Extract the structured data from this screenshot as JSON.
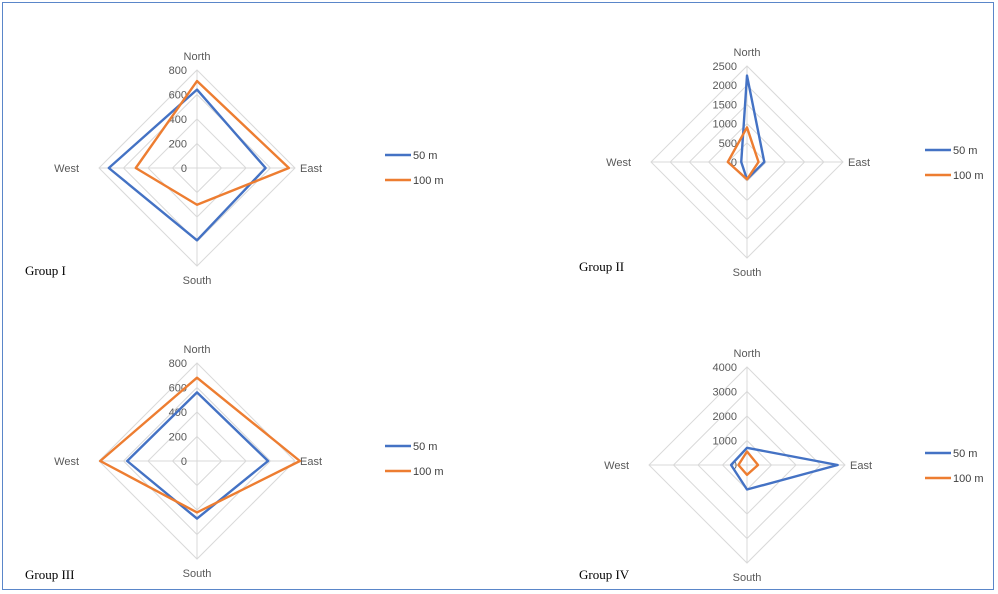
{
  "colors": {
    "series_50": "#4472c4",
    "series_100": "#ed7d31",
    "grid": "#d9d9d9",
    "frame": "#5a86c9"
  },
  "chart_data": [
    {
      "type": "radar",
      "group_label": "Group I",
      "categories": [
        "North",
        "East",
        "South",
        "West"
      ],
      "ticks": [
        "0",
        "200",
        "400",
        "600",
        "800"
      ],
      "rmax": 800,
      "legend_position": "right",
      "series": [
        {
          "name": "50 m",
          "values": [
            640,
            560,
            590,
            720
          ]
        },
        {
          "name": "100 m",
          "values": [
            710,
            750,
            300,
            500
          ]
        }
      ]
    },
    {
      "type": "radar",
      "group_label": "Group II",
      "categories": [
        "North",
        "East",
        "South",
        "West"
      ],
      "ticks": [
        "0",
        "500",
        "1000",
        "1500",
        "2000",
        "2500"
      ],
      "rmax": 2500,
      "legend_position": "right",
      "series": [
        {
          "name": "50 m",
          "values": [
            2250,
            450,
            450,
            150
          ]
        },
        {
          "name": "100 m",
          "values": [
            900,
            300,
            450,
            500
          ]
        }
      ]
    },
    {
      "type": "radar",
      "group_label": "Group III",
      "categories": [
        "North",
        "East",
        "South",
        "West"
      ],
      "ticks": [
        "0",
        "200",
        "400",
        "600",
        "800"
      ],
      "rmax": 800,
      "legend_position": "right",
      "series": [
        {
          "name": "50 m",
          "values": [
            560,
            580,
            470,
            570
          ]
        },
        {
          "name": "100 m",
          "values": [
            680,
            840,
            420,
            790
          ]
        }
      ]
    },
    {
      "type": "radar",
      "group_label": "Group IV",
      "categories": [
        "North",
        "East",
        "South",
        "West"
      ],
      "ticks": [
        "0",
        "1000",
        "2000",
        "3000",
        "4000"
      ],
      "rmax": 4000,
      "legend_position": "right",
      "series": [
        {
          "name": "50 m",
          "values": [
            700,
            3700,
            1000,
            650
          ]
        },
        {
          "name": "100 m",
          "values": [
            550,
            450,
            400,
            350
          ]
        }
      ]
    }
  ]
}
